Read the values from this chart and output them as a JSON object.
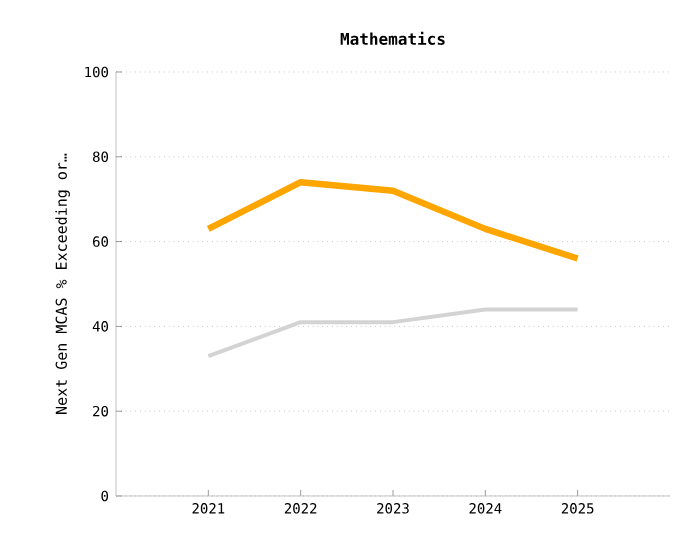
{
  "chart_data": {
    "type": "line",
    "title": "Mathematics",
    "ylabel": "Next Gen MCAS % Exceeding or…",
    "categories": [
      "2021",
      "2022",
      "2023",
      "2024",
      "2025"
    ],
    "series": [
      {
        "color": "#ffa500",
        "values": [
          63,
          74,
          72,
          63,
          56
        ]
      },
      {
        "color": "#d3d3d3",
        "values": [
          33,
          41,
          41,
          44,
          44
        ]
      }
    ],
    "ylim": [
      0,
      100
    ],
    "yticks": [
      0,
      20,
      40,
      60,
      80,
      100
    ],
    "grid": "y",
    "marker": "none",
    "line_style": "solid"
  }
}
